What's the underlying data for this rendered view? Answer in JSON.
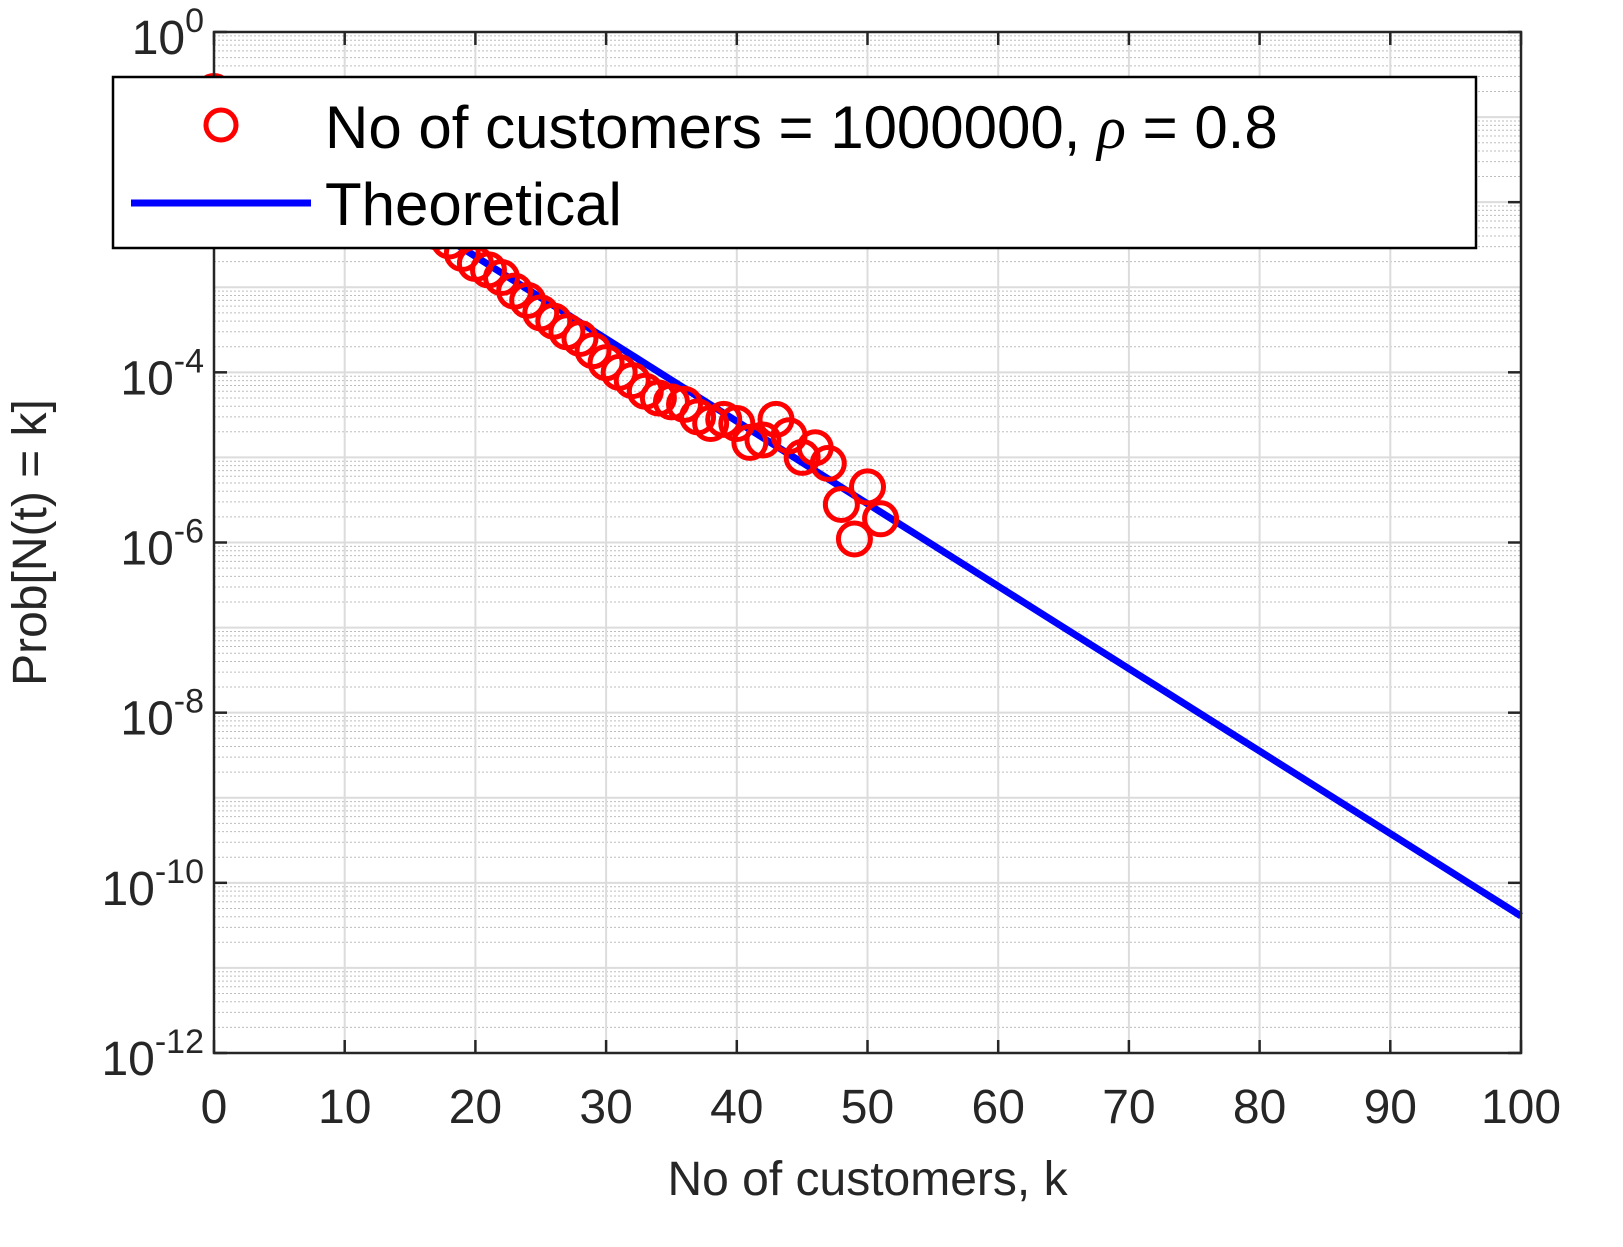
{
  "chart_data": {
    "type": "scatter",
    "title": "",
    "xlabel": "No of customers, k",
    "ylabel": "Prob[N(t) = k]",
    "x_scale": "linear",
    "y_scale": "log",
    "xlim": [
      0,
      100
    ],
    "ylim": [
      1e-12,
      1
    ],
    "x_ticks": [
      "0",
      "10",
      "20",
      "30",
      "40",
      "50",
      "60",
      "70",
      "80",
      "90",
      "100"
    ],
    "y_ticks": [
      {
        "base": "10",
        "exp": "0"
      },
      {
        "base": "10",
        "exp": "-2"
      },
      {
        "base": "10",
        "exp": "-4"
      },
      {
        "base": "10",
        "exp": "-6"
      },
      {
        "base": "10",
        "exp": "-8"
      },
      {
        "base": "10",
        "exp": "-10"
      },
      {
        "base": "10",
        "exp": "-12"
      }
    ],
    "grid": true,
    "minor_grid": true,
    "legend_position": "top",
    "legend": {
      "entries": [
        {
          "prefix": "No of customers = 1000000, ",
          "symbol": "ρ",
          "suffix": " = 0.8",
          "marker": "circle",
          "color": "#ff0000"
        },
        {
          "label": "Theoretical",
          "marker": "line",
          "color": "#0000ff"
        }
      ]
    },
    "series": [
      {
        "name": "No of customers = 1000000, ρ = 0.8",
        "style": "markers",
        "color": "#ff0000",
        "x": [
          0,
          1,
          2,
          3,
          4,
          5,
          6,
          7,
          8,
          9,
          10,
          11,
          12,
          13,
          14,
          15,
          16,
          17,
          18,
          19,
          20,
          21,
          22,
          23,
          24,
          25,
          26,
          27,
          28,
          29,
          30,
          31,
          32,
          33,
          34,
          35,
          36,
          37,
          38,
          39,
          40,
          41,
          42,
          43,
          44,
          45,
          46,
          47,
          48,
          49,
          50,
          51
        ],
        "y": [
          0.2,
          0.16,
          0.128,
          0.102,
          0.082,
          0.066,
          0.052,
          0.042,
          0.034,
          0.027,
          0.021,
          0.017,
          0.014,
          0.011,
          0.0088,
          0.007,
          0.0056,
          0.0045,
          0.0035,
          0.0025,
          0.0019,
          0.0016,
          0.0013,
          0.0009,
          0.0007,
          0.0005,
          0.0004,
          0.0003,
          0.00025,
          0.00018,
          0.00013,
          0.0001,
          8e-05,
          6e-05,
          5e-05,
          4.5e-05,
          4.2e-05,
          3e-05,
          2.5e-05,
          2.8e-05,
          2.5e-05,
          1.5e-05,
          1.6e-05,
          2.8e-05,
          1.8e-05,
          1e-05,
          1.3e-05,
          8.5e-06,
          2.8e-06,
          1.1e-06,
          4.5e-06,
          1.9e-06
        ]
      },
      {
        "name": "Theoretical",
        "style": "line",
        "color": "#0000ff",
        "formula": "(1-rho)*rho^k",
        "rho": 0.8,
        "x": [
          0,
          100
        ],
        "y": [
          0.2,
          4.07e-11
        ]
      }
    ]
  }
}
